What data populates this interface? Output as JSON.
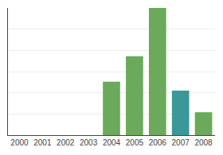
{
  "chart_data": {
    "type": "bar",
    "categories": [
      "2000",
      "2001",
      "2002",
      "2003",
      "2004",
      "2005",
      "2006",
      "2007",
      "2008"
    ],
    "values": [
      0,
      0,
      0,
      0,
      42,
      62,
      100,
      35,
      18
    ],
    "colors": [
      "#6aaa5a",
      "#6aaa5a",
      "#6aaa5a",
      "#6aaa5a",
      "#6aaa5a",
      "#6aaa5a",
      "#6aaa5a",
      "#3a9898",
      "#6aaa5a"
    ],
    "ylim": [
      0,
      100
    ],
    "yticks": [
      16.666666666666668,
      33.333333333333336,
      50,
      66.66666666666667,
      83.33333333333334,
      100
    ],
    "grid": true,
    "tick_labels": "x"
  }
}
